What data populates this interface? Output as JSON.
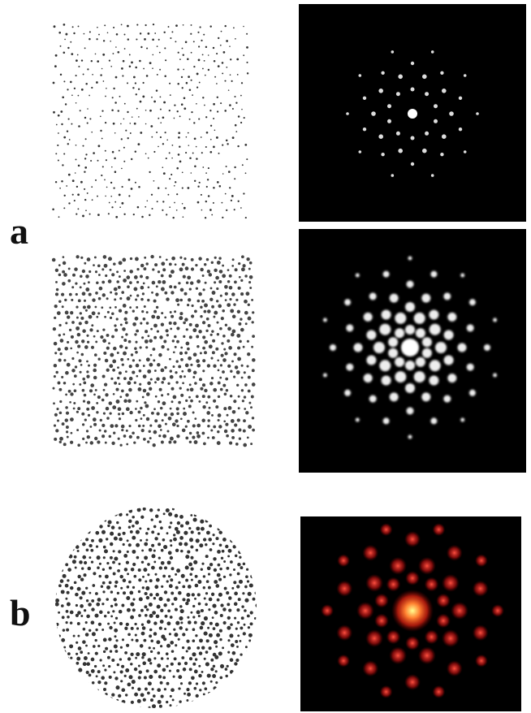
{
  "panel_labels": [
    "a",
    "b"
  ]
}
